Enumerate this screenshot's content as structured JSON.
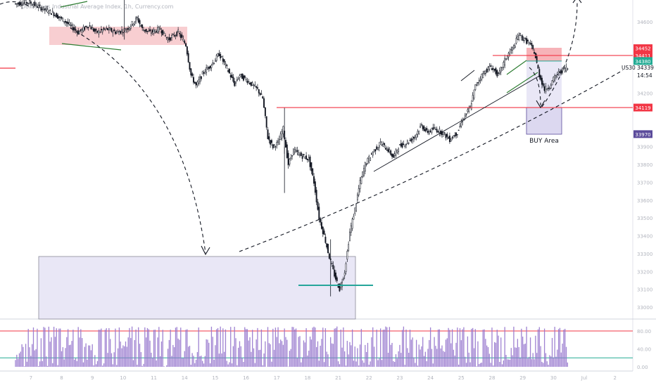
{
  "header": {
    "title_fragment": "Dow Jones Industrial Average Index, 1h, Currency.com"
  },
  "price_axis": {
    "ticks": [
      {
        "value": 34600,
        "label": "34600"
      },
      {
        "value": 34400,
        "label": "34400"
      },
      {
        "value": 34200,
        "label": "34200"
      },
      {
        "value": 33900,
        "label": "33900"
      },
      {
        "value": 33800,
        "label": "33800"
      },
      {
        "value": 33700,
        "label": "33700"
      },
      {
        "value": 33600,
        "label": "33600"
      },
      {
        "value": 33500,
        "label": "33500"
      },
      {
        "value": 33400,
        "label": "33400"
      },
      {
        "value": 33300,
        "label": "33300"
      },
      {
        "value": 33200,
        "label": "33200"
      },
      {
        "value": 33100,
        "label": "33100"
      },
      {
        "value": 33000,
        "label": "33000"
      }
    ],
    "badges": [
      {
        "value": 34452,
        "label": "34452",
        "color": "#f23645"
      },
      {
        "value": 34411,
        "label": "34411",
        "color": "#f23645"
      },
      {
        "value": 34380,
        "label": "34380",
        "color": "#22ab94"
      },
      {
        "value": 34119,
        "label": "34119",
        "color": "#f23645"
      },
      {
        "value": 33970,
        "label": "33970",
        "color": "#5b4b9b"
      }
    ],
    "symbol_label": "US30",
    "last_price": "34339",
    "countdown": "14:54"
  },
  "time_axis": {
    "labels": [
      {
        "hour": 12,
        "label": "7"
      },
      {
        "hour": 36,
        "label": "8"
      },
      {
        "hour": 60,
        "label": "9"
      },
      {
        "hour": 84,
        "label": "10"
      },
      {
        "hour": 108,
        "label": "11"
      },
      {
        "hour": 132,
        "label": "14"
      },
      {
        "hour": 156,
        "label": "15"
      },
      {
        "hour": 180,
        "label": "16"
      },
      {
        "hour": 204,
        "label": "17"
      },
      {
        "hour": 228,
        "label": "18"
      },
      {
        "hour": 252,
        "label": "21"
      },
      {
        "hour": 276,
        "label": "22"
      },
      {
        "hour": 300,
        "label": "23"
      },
      {
        "hour": 324,
        "label": "24"
      },
      {
        "hour": 348,
        "label": "25"
      },
      {
        "hour": 372,
        "label": "28"
      },
      {
        "hour": 396,
        "label": "29"
      },
      {
        "hour": 420,
        "label": "30"
      },
      {
        "hour": 444,
        "label": "Jul"
      },
      {
        "hour": 468,
        "label": "2"
      }
    ]
  },
  "annotations": {
    "buy_area_label": "BUY Area"
  },
  "oscillator": {
    "levels": [
      {
        "value": 80,
        "label": "80.00"
      },
      {
        "value": 40,
        "label": "40.00"
      },
      {
        "value": 0,
        "label": "0.00"
      }
    ],
    "upper_line": 80,
    "lower_line": 20
  },
  "chart_data": {
    "type": "candlestick",
    "title": "",
    "xlabel": "",
    "ylabel": "",
    "ylim": [
      32930,
      34780
    ],
    "x_unit": "hours",
    "close_path": [
      [
        0,
        34700
      ],
      [
        12,
        34710
      ],
      [
        20,
        34680
      ],
      [
        30,
        34650
      ],
      [
        40,
        34600
      ],
      [
        50,
        34540
      ],
      [
        58,
        34580
      ],
      [
        64,
        34540
      ],
      [
        72,
        34560
      ],
      [
        80,
        34540
      ],
      [
        88,
        34560
      ],
      [
        96,
        34620
      ],
      [
        100,
        34560
      ],
      [
        106,
        34540
      ],
      [
        114,
        34560
      ],
      [
        120,
        34500
      ],
      [
        128,
        34540
      ],
      [
        134,
        34470
      ],
      [
        138,
        34300
      ],
      [
        142,
        34240
      ],
      [
        148,
        34320
      ],
      [
        154,
        34360
      ],
      [
        160,
        34420
      ],
      [
        166,
        34340
      ],
      [
        172,
        34250
      ],
      [
        176,
        34300
      ],
      [
        182,
        34270
      ],
      [
        190,
        34220
      ],
      [
        194,
        34170
      ],
      [
        198,
        33950
      ],
      [
        202,
        33900
      ],
      [
        206,
        33920
      ],
      [
        210,
        34000
      ],
      [
        214,
        33800
      ],
      [
        218,
        33880
      ],
      [
        224,
        33850
      ],
      [
        230,
        33830
      ],
      [
        234,
        33700
      ],
      [
        238,
        33500
      ],
      [
        242,
        33400
      ],
      [
        246,
        33280
      ],
      [
        250,
        33180
      ],
      [
        254,
        33100
      ],
      [
        258,
        33200
      ],
      [
        262,
        33420
      ],
      [
        266,
        33550
      ],
      [
        270,
        33700
      ],
      [
        274,
        33800
      ],
      [
        280,
        33870
      ],
      [
        286,
        33920
      ],
      [
        292,
        33880
      ],
      [
        296,
        33840
      ],
      [
        300,
        33900
      ],
      [
        306,
        33920
      ],
      [
        312,
        33950
      ],
      [
        318,
        34020
      ],
      [
        322,
        33980
      ],
      [
        328,
        34000
      ],
      [
        334,
        33980
      ],
      [
        340,
        33940
      ],
      [
        346,
        33980
      ],
      [
        350,
        34050
      ],
      [
        356,
        34120
      ],
      [
        360,
        34240
      ],
      [
        366,
        34310
      ],
      [
        372,
        34350
      ],
      [
        378,
        34300
      ],
      [
        384,
        34400
      ],
      [
        390,
        34460
      ],
      [
        394,
        34530
      ],
      [
        398,
        34500
      ],
      [
        402,
        34480
      ],
      [
        406,
        34430
      ],
      [
        410,
        34300
      ],
      [
        414,
        34220
      ],
      [
        418,
        34240
      ],
      [
        422,
        34290
      ],
      [
        426,
        34320
      ],
      [
        430,
        34339
      ]
    ],
    "hourly_bars": 432,
    "horizontal_levels": [
      {
        "price": 34411,
        "color": "#f23645"
      },
      {
        "price": 34119,
        "color": "#f23645"
      },
      {
        "price": 34380,
        "color": "#22ab94"
      }
    ]
  }
}
